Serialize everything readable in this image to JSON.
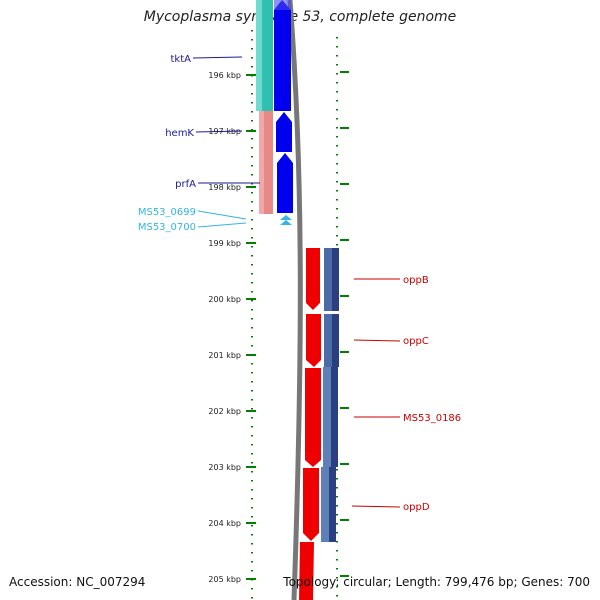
{
  "title": "Mycoplasma synoviae 53, complete genome",
  "accession_text": "Accession: NC_007294",
  "topology_text": "Topology: circular; Length: 799,476 bp; Genes: 700",
  "colors": {
    "tick": "#008000",
    "label_dark": "#1a1a99",
    "label_light": "#33b5e5",
    "label_red": "#cc0000",
    "backbone": "#777777"
  },
  "scale": {
    "ticks": [
      "196 kbp",
      "197 kbp",
      "198 kbp",
      "199 kbp",
      "200 kbp",
      "201 kbp",
      "202 kbp",
      "203 kbp",
      "204 kbp",
      "205 kbp"
    ]
  },
  "genes_left": [
    {
      "name": "tktA",
      "color": "#30c0b0",
      "strand": "rev"
    },
    {
      "name": "hemK",
      "color": "#e88888",
      "strand": "rev"
    },
    {
      "name": "prfA",
      "color": "#e88888",
      "strand": "rev"
    },
    {
      "name": "MS53_0699",
      "color": "#33b5e5",
      "strand": "rev"
    },
    {
      "name": "MS53_0700",
      "color": "#33b5e5",
      "strand": "rev"
    }
  ],
  "genes_right": [
    {
      "name": "oppB",
      "color": "#ee0000",
      "strand": "fwd"
    },
    {
      "name": "oppC",
      "color": "#ee0000",
      "strand": "fwd"
    },
    {
      "name": "MS53_0186",
      "color": "#ee0000",
      "strand": "fwd"
    },
    {
      "name": "oppD",
      "color": "#ee0000",
      "strand": "fwd"
    }
  ]
}
